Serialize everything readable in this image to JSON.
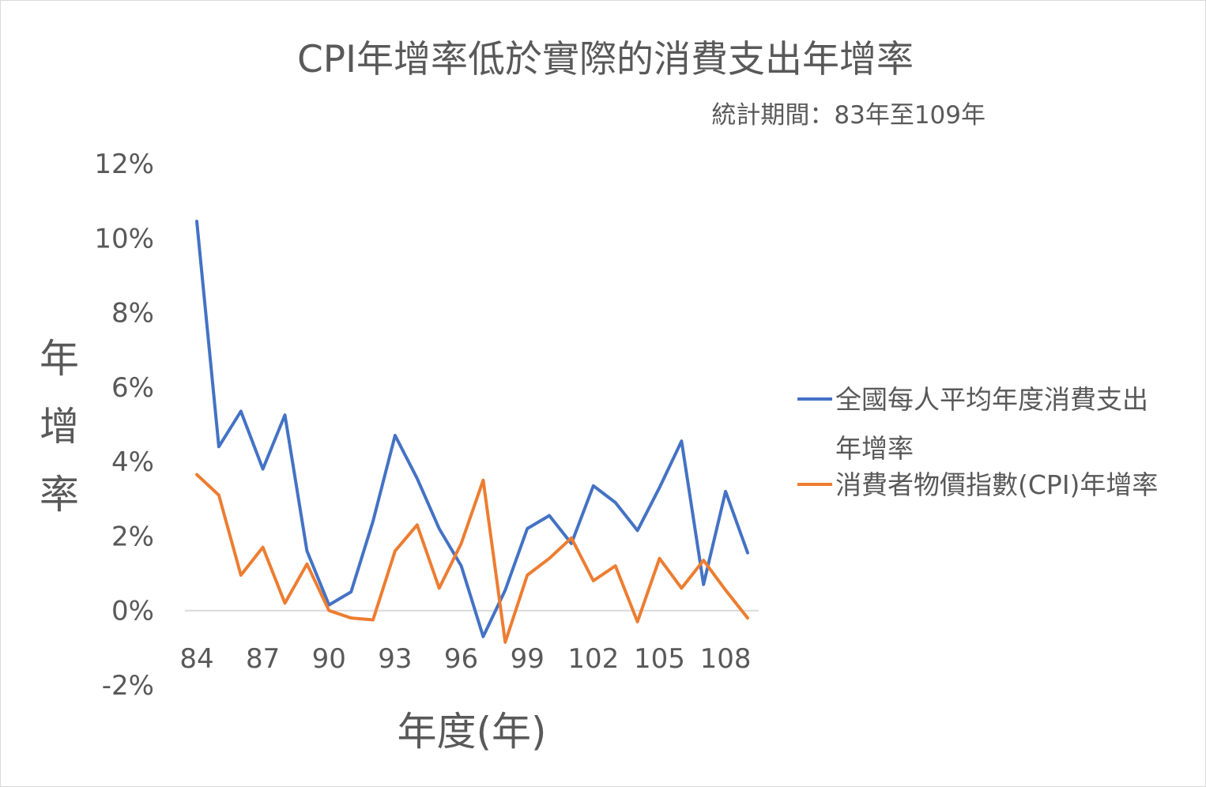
{
  "chart_data": {
    "type": "line",
    "title": "CPI年增率低於實際的消費支出年增率",
    "subtitle": "統計期間：83年至109年",
    "xlabel": "年度(年)",
    "ylabel": "年增率",
    "x": [
      84,
      85,
      86,
      87,
      88,
      89,
      90,
      91,
      92,
      93,
      94,
      95,
      96,
      97,
      98,
      99,
      100,
      101,
      102,
      103,
      104,
      105,
      106,
      107,
      108,
      109
    ],
    "x_tick_labels": [
      "84",
      "87",
      "90",
      "93",
      "96",
      "99",
      "102",
      "105",
      "108"
    ],
    "y_tick_labels": [
      "-2%",
      "0%",
      "2%",
      "4%",
      "6%",
      "8%",
      "10%",
      "12%"
    ],
    "ylim": [
      -2,
      12
    ],
    "y_unit": "%",
    "grid": false,
    "legend_position": "right",
    "series": [
      {
        "name": "全國每人平均年度消費支出年增率",
        "color": "#4472c4",
        "values": [
          10.45,
          4.4,
          5.35,
          3.8,
          5.25,
          1.6,
          0.15,
          0.5,
          2.4,
          4.7,
          3.55,
          2.2,
          1.2,
          -0.7,
          0.55,
          2.2,
          2.55,
          1.8,
          3.35,
          2.9,
          2.15,
          3.3,
          4.55,
          0.7,
          3.2,
          1.55
        ]
      },
      {
        "name": "消費者物價指數(CPI)年增率",
        "color": "#ed7d31",
        "values": [
          3.65,
          3.1,
          0.95,
          1.7,
          0.2,
          1.25,
          0.0,
          -0.2,
          -0.25,
          1.6,
          2.3,
          0.6,
          1.8,
          3.5,
          -0.85,
          0.95,
          1.4,
          1.95,
          0.8,
          1.2,
          -0.3,
          1.4,
          0.6,
          1.35,
          0.55,
          -0.2
        ]
      }
    ]
  }
}
